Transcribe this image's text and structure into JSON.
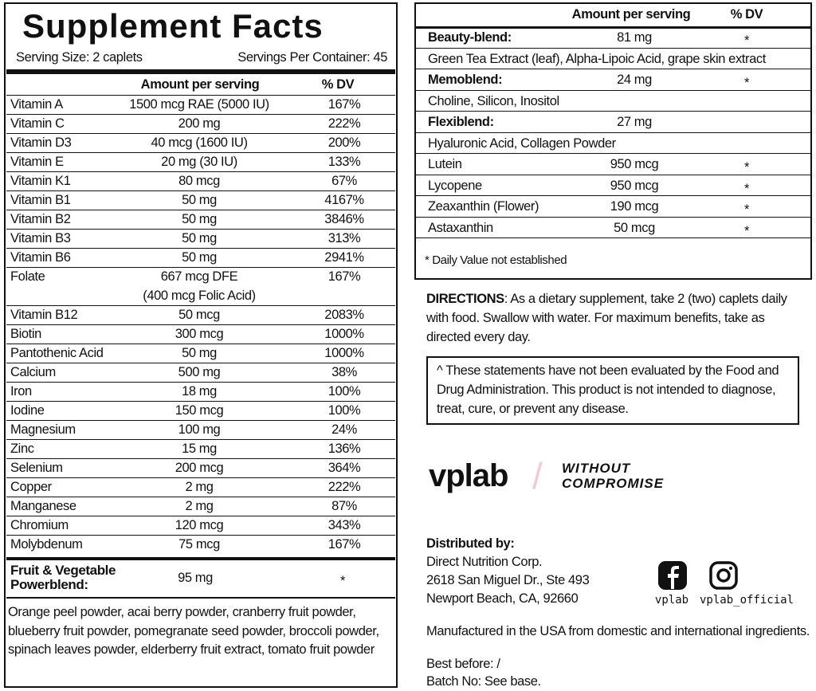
{
  "left": {
    "title": "Supplement Facts",
    "serving_size": "Serving Size: 2 caplets",
    "servings": "Servings Per Container: 45",
    "headers": [
      "Amount per serving",
      "% DV"
    ],
    "rows": [
      {
        "name": "Vitamin A",
        "amount": "1500 mcg RAE (5000 IU)",
        "dv": "167%"
      },
      {
        "name": "Vitamin C",
        "amount": "200 mg",
        "dv": "222%"
      },
      {
        "name": "Vitamin D3",
        "amount": "40 mcg (1600 IU)",
        "dv": "200%"
      },
      {
        "name": "Vitamin E",
        "amount": "20 mg (30 IU)",
        "dv": "133%"
      },
      {
        "name": "Vitamin K1",
        "amount": "80 mcg",
        "dv": "67%"
      },
      {
        "name": "Vitamin B1",
        "amount": "50 mg",
        "dv": "4167%"
      },
      {
        "name": "Vitamin B2",
        "amount": "50 mg",
        "dv": "3846%"
      },
      {
        "name": "Vitamin B3",
        "amount": "50 mg",
        "dv": "313%"
      },
      {
        "name": "Vitamin B6",
        "amount": "50 mg",
        "dv": "2941%"
      },
      {
        "name": "Folate",
        "amount": "667 mcg DFE",
        "dv": "167%",
        "note": "(400 mcg Folic Acid)"
      },
      {
        "name": "Vitamin B12",
        "amount": "50 mcg",
        "dv": "2083%"
      },
      {
        "name": "Biotin",
        "amount": "300 mcg",
        "dv": "1000%"
      },
      {
        "name": "Pantothenic Acid",
        "amount": "50 mg",
        "dv": "1000%"
      },
      {
        "name": "Calcium",
        "amount": "500 mg",
        "dv": "38%"
      },
      {
        "name": "Iron",
        "amount": "18 mg",
        "dv": "100%"
      },
      {
        "name": "Iodine",
        "amount": "150 mcg",
        "dv": "100%"
      },
      {
        "name": "Magnesium",
        "amount": "100 mg",
        "dv": "24%"
      },
      {
        "name": "Zinc",
        "amount": "15 mg",
        "dv": "136%"
      },
      {
        "name": "Selenium",
        "amount": "200 mcg",
        "dv": "364%"
      },
      {
        "name": "Copper",
        "amount": "2 mg",
        "dv": "222%"
      },
      {
        "name": "Manganese",
        "amount": "2 mg",
        "dv": "87%"
      },
      {
        "name": "Chromium",
        "amount": "120 mcg",
        "dv": "343%"
      },
      {
        "name": "Molybdenum",
        "amount": "75 mcg",
        "dv": "167%"
      }
    ],
    "blend": {
      "name": "Fruit & Vegetable Powerblend:",
      "amount": "95 mg",
      "dv": "*",
      "ingredients": "Orange peel powder, acai berry powder, cranberry fruit powder, blueberry fruit powder, pomegranate seed powder, broccoli powder, spinach leaves powder, elderberry fruit extract,  tomato fruit powder"
    }
  },
  "right": {
    "headers": [
      "Amount per serving",
      "% DV"
    ],
    "rows": [
      {
        "name": "Beauty-blend:",
        "amount": "81 mg",
        "dv": "*",
        "bold": true
      },
      {
        "ingredients": "Green Tea Extract (leaf), Alpha-Lipoic Acid, grape skin extract"
      },
      {
        "name": "Memoblend:",
        "amount": "24 mg",
        "dv": "*",
        "bold": true
      },
      {
        "ingredients": "Choline, Silicon, Inositol"
      },
      {
        "name": "Flexiblend:",
        "amount": "27 mg",
        "bold": true
      },
      {
        "ingredients": "Hyaluronic Acid, Collagen Powder"
      },
      {
        "name": "Lutein",
        "amount": "950 mcg",
        "dv": "*"
      },
      {
        "name": "Lycopene",
        "amount": "950 mcg",
        "dv": "*"
      },
      {
        "name": "Zeaxanthin (Flower)",
        "amount": "190 mcg",
        "dv": "*"
      },
      {
        "name": "Astaxanthin",
        "amount": "50 mcg",
        "dv": "*"
      }
    ],
    "footnote": "* Daily Value not established"
  },
  "directions": {
    "label": "DIRECTIONS",
    "text": ": As a dietary supplement, take 2 (two) caplets daily with food. Swallow with water. For maximum benefits, take as directed every day."
  },
  "disclaimer": "^ These statements have not been evaluated by the Food and Drug Administration. This product is not intended to diagnose, treat, cure, or prevent any disease.",
  "brand": {
    "logo": "vplab",
    "slash": "/",
    "tagline": [
      "WITHOUT",
      "COMPROMISE"
    ]
  },
  "distributor": {
    "label": "Distributed by:",
    "lines": [
      "Direct Nutrition Corp.",
      "2618 San Miguel Dr., Ste 493",
      "Newport Beach, CA, 92660"
    ]
  },
  "social": [
    "vplab",
    "vplab_official"
  ],
  "manufactured": "Manufactured in the USA from domestic and international ingredients.",
  "best_before": "Best before: /",
  "batch": "Batch No: See base."
}
